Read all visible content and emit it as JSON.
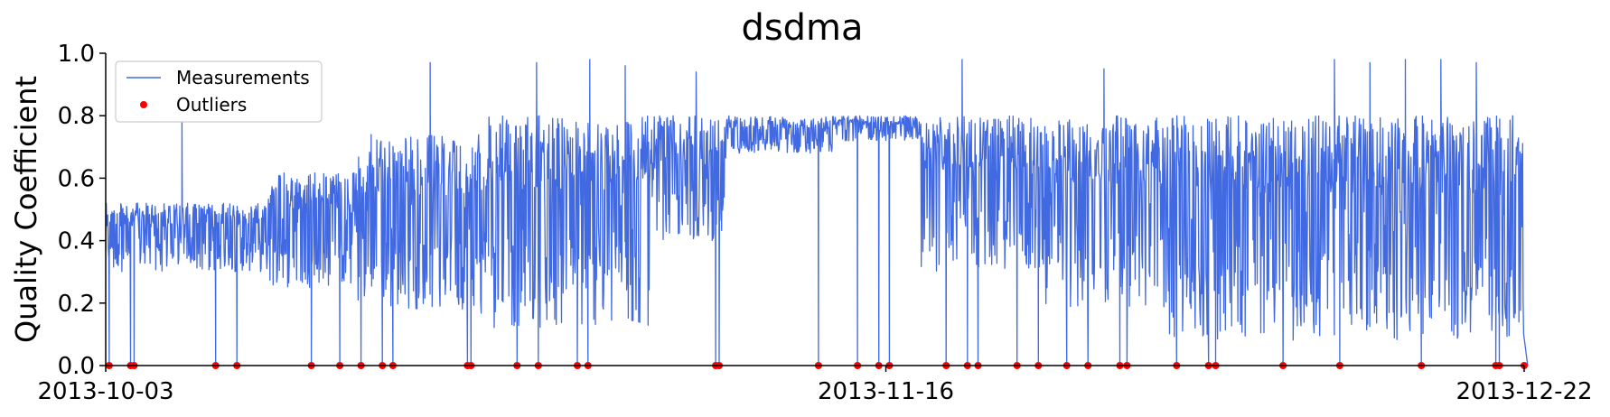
{
  "chart_data": {
    "type": "line",
    "title": "dsdma",
    "xlabel": "",
    "ylabel": "Quality Coefficient",
    "xlim": [
      "2013-10-03",
      "2013-12-22"
    ],
    "ylim": [
      0.0,
      1.0
    ],
    "x_ticks": [
      "2013-10-03",
      "2013-11-16",
      "2013-12-22"
    ],
    "y_ticks": [
      "0.0",
      "0.2",
      "0.4",
      "0.6",
      "0.8",
      "1.0"
    ],
    "grid": false,
    "legend_position": "top-left",
    "colors": {
      "measurements": "#4169e1",
      "outliers": "#ff0000"
    },
    "series": [
      {
        "name": "Measurements",
        "kind": "line",
        "segments": [
          {
            "start": "2013-10-03",
            "end": "2013-10-12",
            "low": 0.3,
            "high": 0.52
          },
          {
            "start": "2013-10-12",
            "end": "2013-10-17",
            "low": 0.25,
            "high": 0.62
          },
          {
            "start": "2013-10-17",
            "end": "2013-10-24",
            "low": 0.18,
            "high": 0.74
          },
          {
            "start": "2013-10-24",
            "end": "2013-11-03",
            "low": 0.12,
            "high": 0.8
          },
          {
            "start": "2013-11-03",
            "end": "2013-11-07",
            "low": 0.4,
            "high": 0.8
          },
          {
            "start": "2013-11-07",
            "end": "2013-11-13",
            "low": 0.68,
            "high": 0.8
          },
          {
            "start": "2013-11-13",
            "end": "2013-11-18",
            "low": 0.72,
            "high": 0.8
          },
          {
            "start": "2013-11-18",
            "end": "2013-11-25",
            "low": 0.3,
            "high": 0.8
          },
          {
            "start": "2013-11-25",
            "end": "2013-12-02",
            "low": 0.18,
            "high": 0.8
          },
          {
            "start": "2013-12-02",
            "end": "2013-12-22",
            "low": 0.08,
            "high": 0.8
          }
        ],
        "spikes_high": [
          {
            "x": "2013-10-07",
            "y": 0.78
          },
          {
            "x": "2013-10-21",
            "y": 0.97
          },
          {
            "x": "2013-10-27",
            "y": 0.97
          },
          {
            "x": "2013-10-30",
            "y": 0.98
          },
          {
            "x": "2013-11-01",
            "y": 0.96
          },
          {
            "x": "2013-11-05",
            "y": 0.94
          },
          {
            "x": "2013-11-20",
            "y": 0.98
          },
          {
            "x": "2013-11-28",
            "y": 0.95
          },
          {
            "x": "2013-12-11",
            "y": 0.98
          },
          {
            "x": "2013-12-13",
            "y": 0.97
          },
          {
            "x": "2013-12-15",
            "y": 0.98
          },
          {
            "x": "2013-12-17",
            "y": 0.98
          },
          {
            "x": "2013-12-19",
            "y": 0.97
          }
        ]
      },
      {
        "name": "Outliers",
        "kind": "scatter",
        "points": [
          {
            "x": "2013-10-03",
            "y": 0.0
          },
          {
            "x": "2013-10-04",
            "y": 0.0
          },
          {
            "x": "2013-10-04",
            "y": 0.0
          },
          {
            "x": "2013-10-09",
            "y": 0.0
          },
          {
            "x": "2013-10-10",
            "y": 0.0
          },
          {
            "x": "2013-10-14",
            "y": 0.0
          },
          {
            "x": "2013-10-16",
            "y": 0.0
          },
          {
            "x": "2013-10-17",
            "y": 0.0
          },
          {
            "x": "2013-10-18",
            "y": 0.0
          },
          {
            "x": "2013-10-19",
            "y": 0.0
          },
          {
            "x": "2013-10-23",
            "y": 0.0
          },
          {
            "x": "2013-10-23",
            "y": 0.0
          },
          {
            "x": "2013-10-26",
            "y": 0.0
          },
          {
            "x": "2013-10-27",
            "y": 0.0
          },
          {
            "x": "2013-10-29",
            "y": 0.0
          },
          {
            "x": "2013-10-30",
            "y": 0.0
          },
          {
            "x": "2013-11-06",
            "y": 0.0
          },
          {
            "x": "2013-11-06",
            "y": 0.0
          },
          {
            "x": "2013-11-12",
            "y": 0.0
          },
          {
            "x": "2013-11-14",
            "y": 0.0
          },
          {
            "x": "2013-11-15",
            "y": 0.0
          },
          {
            "x": "2013-11-16",
            "y": 0.0
          },
          {
            "x": "2013-11-19",
            "y": 0.0
          },
          {
            "x": "2013-11-20",
            "y": 0.0
          },
          {
            "x": "2013-11-21",
            "y": 0.0
          },
          {
            "x": "2013-11-23",
            "y": 0.0
          },
          {
            "x": "2013-11-24",
            "y": 0.0
          },
          {
            "x": "2013-11-26",
            "y": 0.0
          },
          {
            "x": "2013-11-27",
            "y": 0.0
          },
          {
            "x": "2013-11-29",
            "y": 0.0
          },
          {
            "x": "2013-11-29",
            "y": 0.0
          },
          {
            "x": "2013-12-02",
            "y": 0.0
          },
          {
            "x": "2013-12-04",
            "y": 0.0
          },
          {
            "x": "2013-12-04",
            "y": 0.0
          },
          {
            "x": "2013-12-08",
            "y": 0.0
          },
          {
            "x": "2013-12-11",
            "y": 0.0
          },
          {
            "x": "2013-12-16",
            "y": 0.0
          },
          {
            "x": "2013-12-20",
            "y": 0.0
          },
          {
            "x": "2013-12-20",
            "y": 0.0
          },
          {
            "x": "2013-12-22",
            "y": 0.0
          }
        ]
      }
    ]
  }
}
